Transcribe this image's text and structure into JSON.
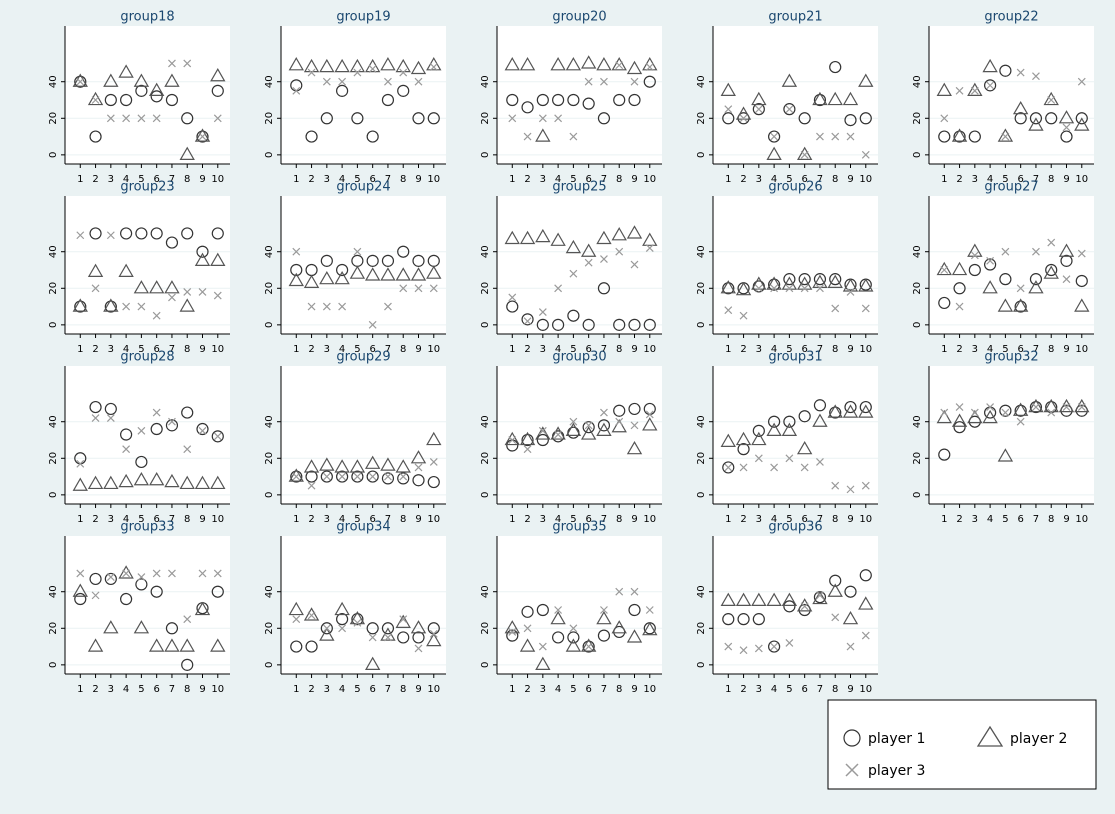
{
  "chart_data": {
    "type": "scatter",
    "x": [
      1,
      2,
      3,
      4,
      5,
      6,
      7,
      8,
      9,
      10
    ],
    "xticks": [
      1,
      2,
      3,
      4,
      5,
      6,
      7,
      8,
      9,
      10
    ],
    "xlim": [
      0,
      10.8
    ],
    "ylim": [
      -5,
      65
    ],
    "yticks": [
      0,
      20,
      40
    ],
    "grid": true,
    "legend": "bottom-right",
    "series": [
      {
        "name": "player 1",
        "color": "#333333",
        "marker": "circle"
      },
      {
        "name": "player 2",
        "color": "#555555",
        "marker": "triangle"
      },
      {
        "name": "player 3",
        "color": "#9a9a9a",
        "marker": "x"
      }
    ],
    "panels": [
      {
        "title": "group18",
        "values": [
          [
            40,
            10,
            30,
            30,
            35,
            32,
            30,
            20,
            10,
            35
          ],
          [
            40,
            30,
            40,
            45,
            40,
            35,
            40,
            0,
            10,
            43
          ],
          [
            40,
            30,
            20,
            20,
            20,
            20,
            50,
            50,
            10,
            20
          ]
        ]
      },
      {
        "title": "group19",
        "values": [
          [
            38,
            10,
            20,
            35,
            20,
            10,
            30,
            35,
            20,
            20
          ],
          [
            49,
            48,
            48,
            48,
            48,
            48,
            49,
            48,
            47,
            49
          ],
          [
            35,
            45,
            40,
            40,
            45,
            47,
            40,
            45,
            40,
            48
          ]
        ]
      },
      {
        "title": "group20",
        "values": [
          [
            30,
            26,
            30,
            30,
            30,
            28,
            20,
            30,
            30,
            40
          ],
          [
            49,
            49,
            10,
            49,
            49,
            50,
            49,
            49,
            47,
            49
          ],
          [
            20,
            10,
            20,
            20,
            10,
            40,
            40,
            49,
            40,
            48
          ]
        ]
      },
      {
        "title": "group21",
        "values": [
          [
            20,
            20,
            25,
            10,
            25,
            20,
            30,
            48,
            19,
            20
          ],
          [
            35,
            22,
            30,
            0,
            40,
            0,
            30,
            30,
            30,
            40
          ],
          [
            25,
            20,
            25,
            10,
            25,
            0,
            10,
            10,
            10,
            0
          ]
        ]
      },
      {
        "title": "group22",
        "values": [
          [
            10,
            10,
            10,
            38,
            46,
            20,
            20,
            20,
            10,
            20
          ],
          [
            35,
            10,
            35,
            48,
            10,
            25,
            16,
            30,
            20,
            16
          ],
          [
            20,
            35,
            35,
            38,
            10,
            45,
            43,
            30,
            15,
            40
          ]
        ]
      },
      {
        "title": "group23",
        "values": [
          [
            10,
            50,
            10,
            50,
            50,
            50,
            45,
            50,
            40,
            50
          ],
          [
            10,
            29,
            10,
            29,
            20,
            20,
            20,
            10,
            35,
            35
          ],
          [
            49,
            20,
            49,
            10,
            10,
            5,
            15,
            18,
            18,
            16
          ]
        ]
      },
      {
        "title": "group24",
        "values": [
          [
            30,
            30,
            35,
            30,
            35,
            35,
            35,
            40,
            35,
            35
          ],
          [
            24,
            23,
            25,
            25,
            28,
            27,
            27,
            27,
            27,
            28
          ],
          [
            40,
            10,
            10,
            10,
            40,
            0,
            10,
            20,
            20,
            20
          ]
        ]
      },
      {
        "title": "group25",
        "values": [
          [
            10,
            3,
            0,
            0,
            5,
            0,
            20,
            0,
            0,
            0
          ],
          [
            47,
            47,
            48,
            46,
            42,
            40,
            47,
            49,
            50,
            46
          ],
          [
            15,
            2,
            7,
            20,
            28,
            34,
            36,
            40,
            33,
            42
          ]
        ]
      },
      {
        "title": "group26",
        "values": [
          [
            20,
            20,
            21,
            22,
            25,
            25,
            25,
            25,
            22,
            22
          ],
          [
            20,
            19,
            22,
            22,
            22,
            22,
            23,
            23,
            21,
            21
          ],
          [
            8,
            5,
            20,
            20,
            20,
            20,
            20,
            9,
            18,
            9
          ]
        ]
      },
      {
        "title": "group27",
        "values": [
          [
            12,
            20,
            30,
            33,
            25,
            10,
            25,
            30,
            35,
            24
          ],
          [
            30,
            30,
            40,
            20,
            10,
            10,
            20,
            28,
            40,
            10
          ],
          [
            30,
            10,
            38,
            35,
            40,
            20,
            40,
            45,
            25,
            39
          ]
        ]
      },
      {
        "title": "group28",
        "values": [
          [
            20,
            48,
            47,
            33,
            18,
            36,
            38,
            45,
            36,
            32
          ],
          [
            5,
            6,
            6,
            7,
            8,
            8,
            7,
            6,
            6,
            6
          ],
          [
            17,
            42,
            42,
            25,
            35,
            45,
            40,
            25,
            35,
            32
          ]
        ]
      },
      {
        "title": "group29",
        "values": [
          [
            10,
            10,
            10,
            10,
            10,
            10,
            9,
            9,
            8,
            7
          ],
          [
            10,
            15,
            16,
            15,
            15,
            17,
            16,
            15,
            20,
            30
          ],
          [
            10,
            5,
            10,
            10,
            10,
            10,
            10,
            10,
            15,
            18
          ]
        ]
      },
      {
        "title": "group30",
        "values": [
          [
            27,
            30,
            30,
            32,
            34,
            37,
            38,
            46,
            47,
            47
          ],
          [
            30,
            30,
            33,
            33,
            35,
            33,
            35,
            37,
            25,
            38
          ],
          [
            30,
            25,
            35,
            33,
            40,
            38,
            45,
            40,
            38,
            44
          ]
        ]
      },
      {
        "title": "group31",
        "values": [
          [
            15,
            25,
            35,
            40,
            40,
            43,
            49,
            45,
            48,
            48
          ],
          [
            29,
            30,
            30,
            35,
            35,
            25,
            40,
            45,
            45,
            45
          ],
          [
            15,
            15,
            20,
            15,
            20,
            15,
            18,
            5,
            3,
            5
          ]
        ]
      },
      {
        "title": "group32",
        "values": [
          [
            22,
            37,
            40,
            45,
            46,
            46,
            48,
            48,
            46,
            46
          ],
          [
            42,
            40,
            42,
            42,
            21,
            46,
            48,
            48,
            48,
            48
          ],
          [
            45,
            48,
            45,
            48,
            45,
            40,
            48,
            45,
            48,
            48
          ]
        ]
      },
      {
        "title": "group33",
        "values": [
          [
            36,
            47,
            47,
            36,
            44,
            40,
            20,
            0,
            31,
            40
          ],
          [
            40,
            10,
            20,
            50,
            20,
            10,
            10,
            10,
            30,
            10
          ],
          [
            50,
            38,
            48,
            50,
            48,
            50,
            50,
            25,
            50,
            50
          ]
        ]
      },
      {
        "title": "group34",
        "values": [
          [
            10,
            10,
            20,
            25,
            25,
            20,
            20,
            15,
            15,
            20
          ],
          [
            30,
            27,
            16,
            30,
            25,
            0,
            16,
            23,
            20,
            13
          ],
          [
            25,
            27,
            20,
            20,
            23,
            15,
            15,
            25,
            9,
            17
          ]
        ]
      },
      {
        "title": "group35",
        "values": [
          [
            16,
            29,
            30,
            15,
            15,
            10,
            16,
            18,
            30,
            20
          ],
          [
            20,
            10,
            0,
            25,
            10,
            10,
            25,
            20,
            15,
            19
          ],
          [
            18,
            20,
            10,
            30,
            20,
            10,
            30,
            40,
            40,
            30
          ]
        ]
      },
      {
        "title": "group36",
        "values": [
          [
            25,
            25,
            25,
            10,
            32,
            30,
            37,
            46,
            40,
            49
          ],
          [
            35,
            35,
            35,
            35,
            35,
            32,
            36,
            40,
            25,
            33
          ],
          [
            10,
            8,
            9,
            10,
            12,
            32,
            38,
            26,
            10,
            16
          ]
        ]
      }
    ]
  }
}
